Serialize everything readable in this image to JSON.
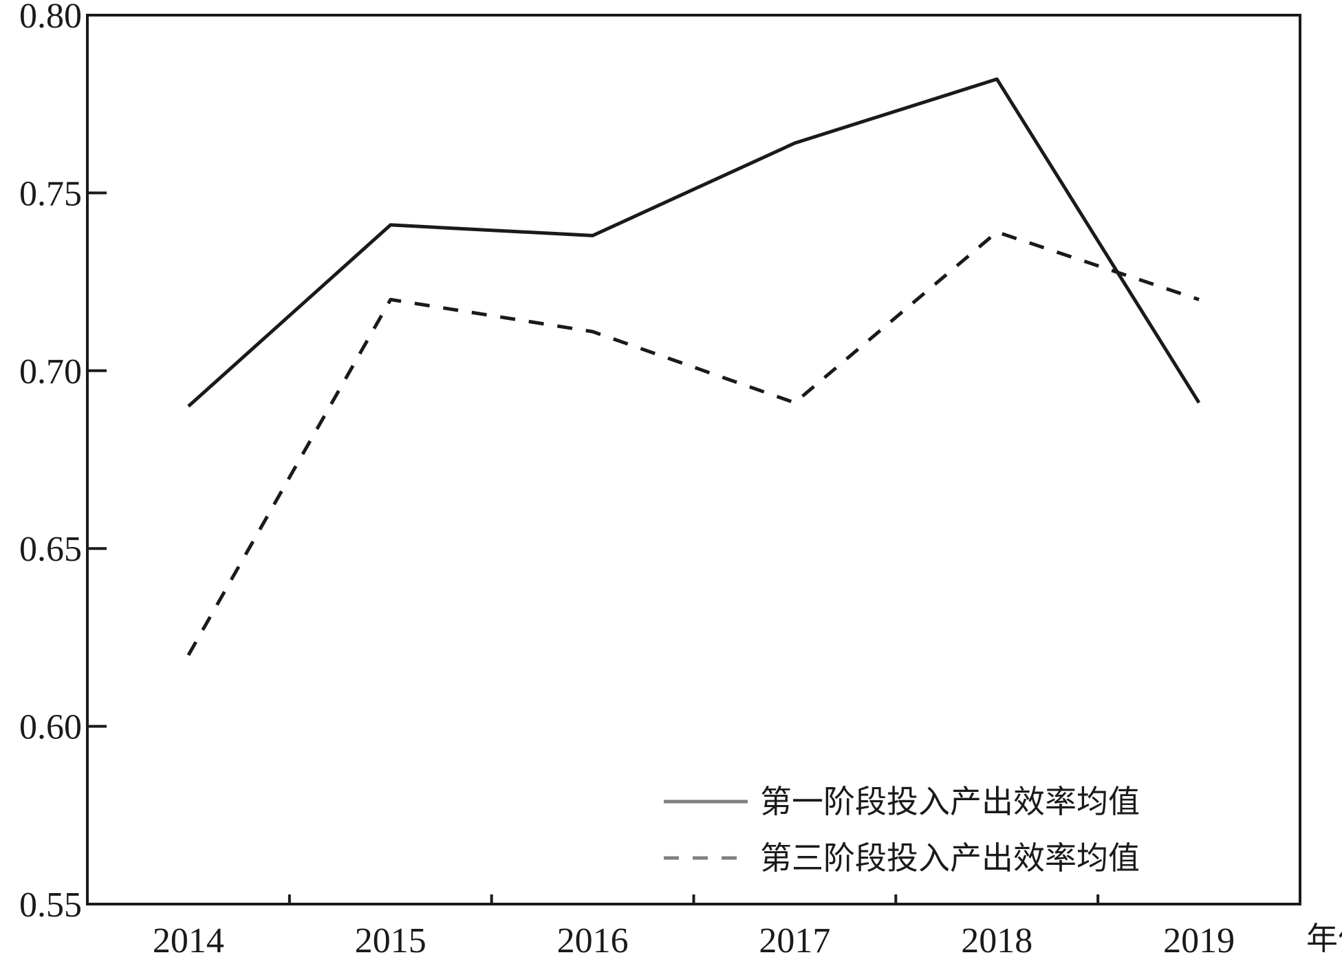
{
  "chart_data": {
    "type": "line",
    "categories": [
      "2014",
      "2015",
      "2016",
      "2017",
      "2018",
      "2019"
    ],
    "xlabel": "年份",
    "ylabel": "",
    "ylim": [
      0.55,
      0.8
    ],
    "yticks": [
      "0.55",
      "0.60",
      "0.65",
      "0.70",
      "0.75",
      "0.80"
    ],
    "grid": false,
    "legend_position": "bottom-right",
    "series": [
      {
        "name": "第一阶段投入产出效率均值",
        "style": "solid",
        "color": "#1a1a1a",
        "legend_color": "#808080",
        "values": [
          0.69,
          0.741,
          0.738,
          0.764,
          0.782,
          0.691
        ]
      },
      {
        "name": "第三阶段投入产出效率均值",
        "style": "dashed",
        "color": "#1a1a1a",
        "legend_color": "#808080",
        "values": [
          0.62,
          0.72,
          0.711,
          0.691,
          0.739,
          0.72
        ]
      }
    ]
  }
}
